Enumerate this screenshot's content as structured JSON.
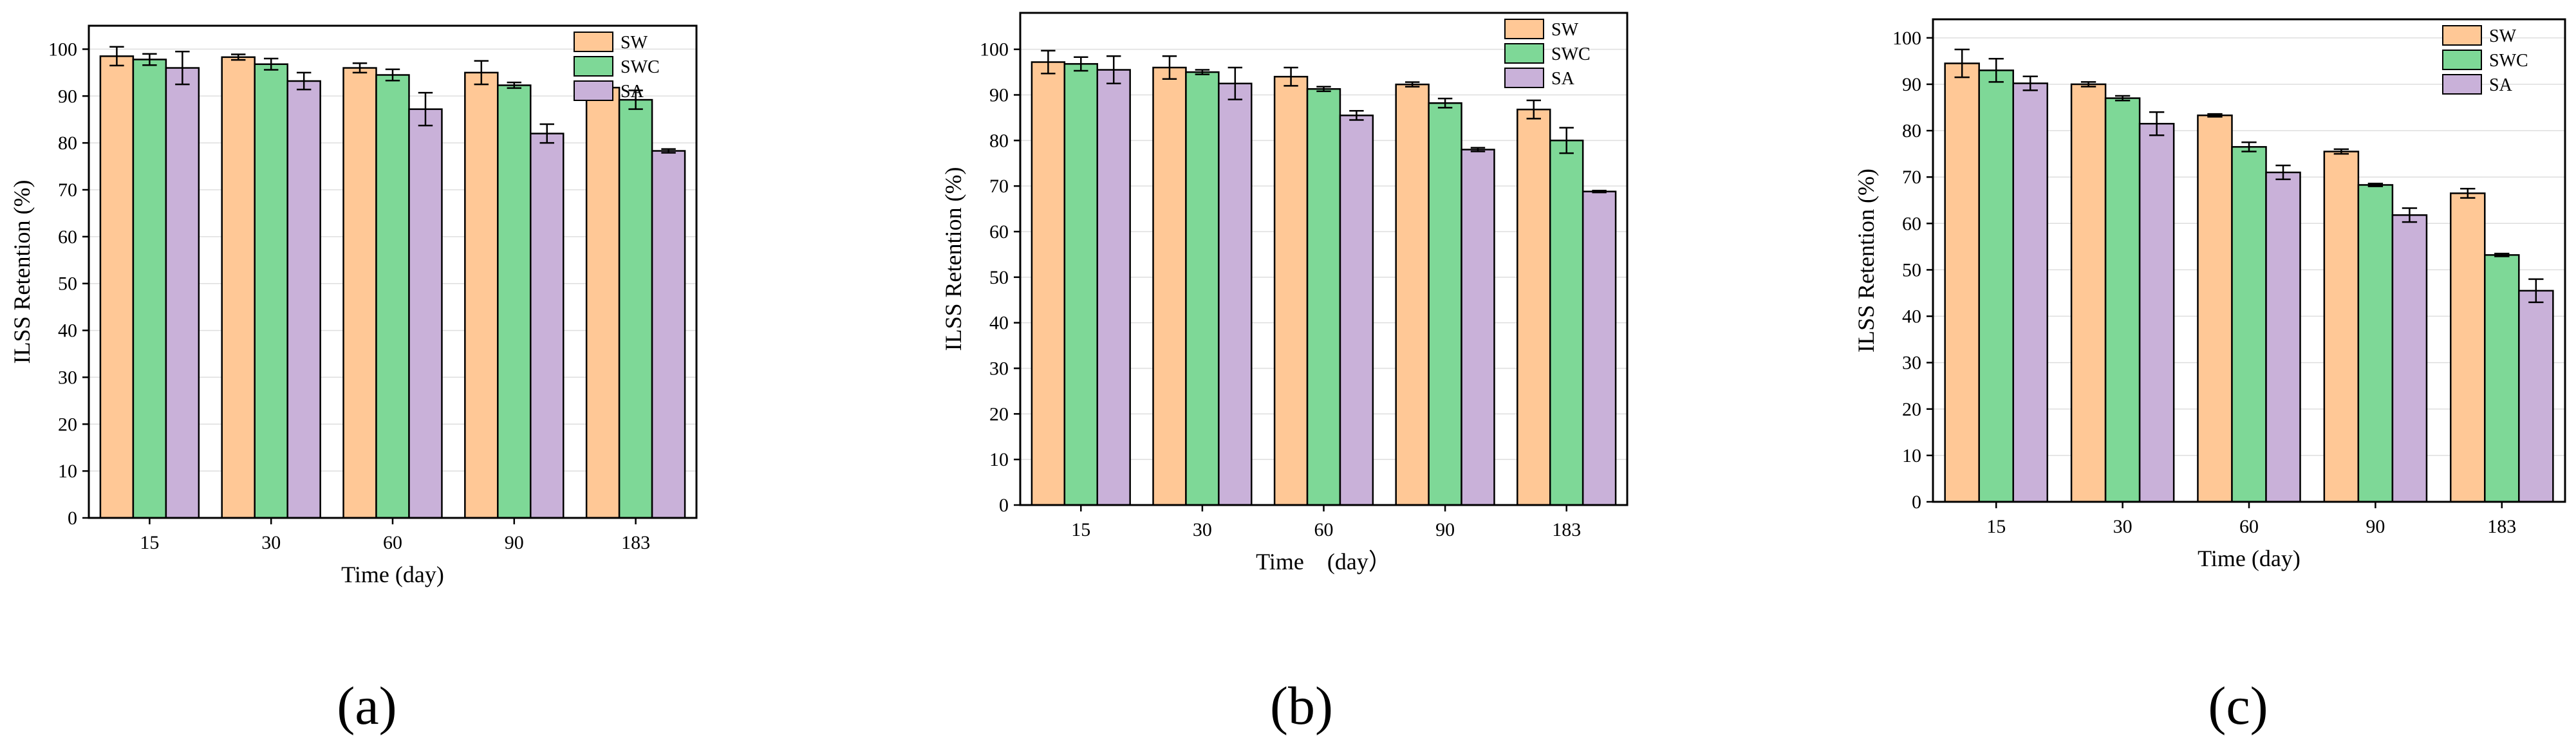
{
  "colors": {
    "SW": "#FFC896",
    "SWC": "#7ED897",
    "SA": "#C9B1D9",
    "frame": "#000000",
    "grid": "#dedede"
  },
  "chart_data": [
    {
      "type": "bar",
      "panel_label": "(a)",
      "categories": [
        "15",
        "30",
        "60",
        "90",
        "183"
      ],
      "xlabel": "Time (day)",
      "ylabel": "ILSS Retention (%)",
      "ylim": [
        0,
        105
      ],
      "yticks": [
        0,
        10,
        20,
        30,
        40,
        50,
        60,
        70,
        80,
        90,
        100
      ],
      "grid": true,
      "legend_position": "top-right",
      "series": [
        {
          "name": "SW",
          "values": [
            98.5,
            98.3,
            96.0,
            95.0,
            91.8
          ],
          "errors": [
            2.0,
            0.6,
            1.0,
            2.5,
            0.6
          ]
        },
        {
          "name": "SWC",
          "values": [
            97.8,
            96.8,
            94.5,
            92.3,
            89.2
          ],
          "errors": [
            1.2,
            1.2,
            1.2,
            0.6,
            2.0
          ]
        },
        {
          "name": "SA",
          "values": [
            96.0,
            93.2,
            87.2,
            82.0,
            78.3
          ],
          "errors": [
            3.5,
            1.8,
            3.5,
            2.0,
            0.4
          ]
        }
      ]
    },
    {
      "type": "bar",
      "panel_label": "(b)",
      "categories": [
        "15",
        "30",
        "60",
        "90",
        "183"
      ],
      "xlabel": "Time　(day）",
      "ylabel": "ILSS Retention (%)",
      "ylim": [
        0,
        108
      ],
      "yticks": [
        0,
        10,
        20,
        30,
        40,
        50,
        60,
        70,
        80,
        90,
        100
      ],
      "grid": true,
      "legend_position": "top-right",
      "series": [
        {
          "name": "SW",
          "values": [
            97.2,
            96.0,
            94.0,
            92.3,
            86.8
          ],
          "errors": [
            2.5,
            2.5,
            2.0,
            0.5,
            2.0
          ]
        },
        {
          "name": "SWC",
          "values": [
            96.8,
            95.0,
            91.3,
            88.2,
            80.0
          ],
          "errors": [
            1.5,
            0.5,
            0.5,
            1.0,
            2.8
          ]
        },
        {
          "name": "SA",
          "values": [
            95.5,
            92.5,
            85.5,
            78.0,
            68.8
          ],
          "errors": [
            3.0,
            3.5,
            1.0,
            0.4,
            0.2
          ]
        }
      ]
    },
    {
      "type": "bar",
      "panel_label": "(c)",
      "categories": [
        "15",
        "30",
        "60",
        "90",
        "183"
      ],
      "xlabel": "Time (day)",
      "ylabel": "ILSS Retention (%)",
      "ylim": [
        0,
        104
      ],
      "yticks": [
        0,
        10,
        20,
        30,
        40,
        50,
        60,
        70,
        80,
        90,
        100
      ],
      "grid": true,
      "legend_position": "top-right",
      "series": [
        {
          "name": "SW",
          "values": [
            94.5,
            90.0,
            83.3,
            75.5,
            66.5
          ],
          "errors": [
            3.0,
            0.5,
            0.3,
            0.5,
            1.0
          ]
        },
        {
          "name": "SWC",
          "values": [
            93.0,
            87.0,
            76.5,
            68.3,
            53.2
          ],
          "errors": [
            2.5,
            0.5,
            1.0,
            0.3,
            0.3
          ]
        },
        {
          "name": "SA",
          "values": [
            90.2,
            81.5,
            71.0,
            61.8,
            45.5
          ],
          "errors": [
            1.5,
            2.5,
            1.5,
            1.5,
            2.5
          ]
        }
      ]
    }
  ]
}
